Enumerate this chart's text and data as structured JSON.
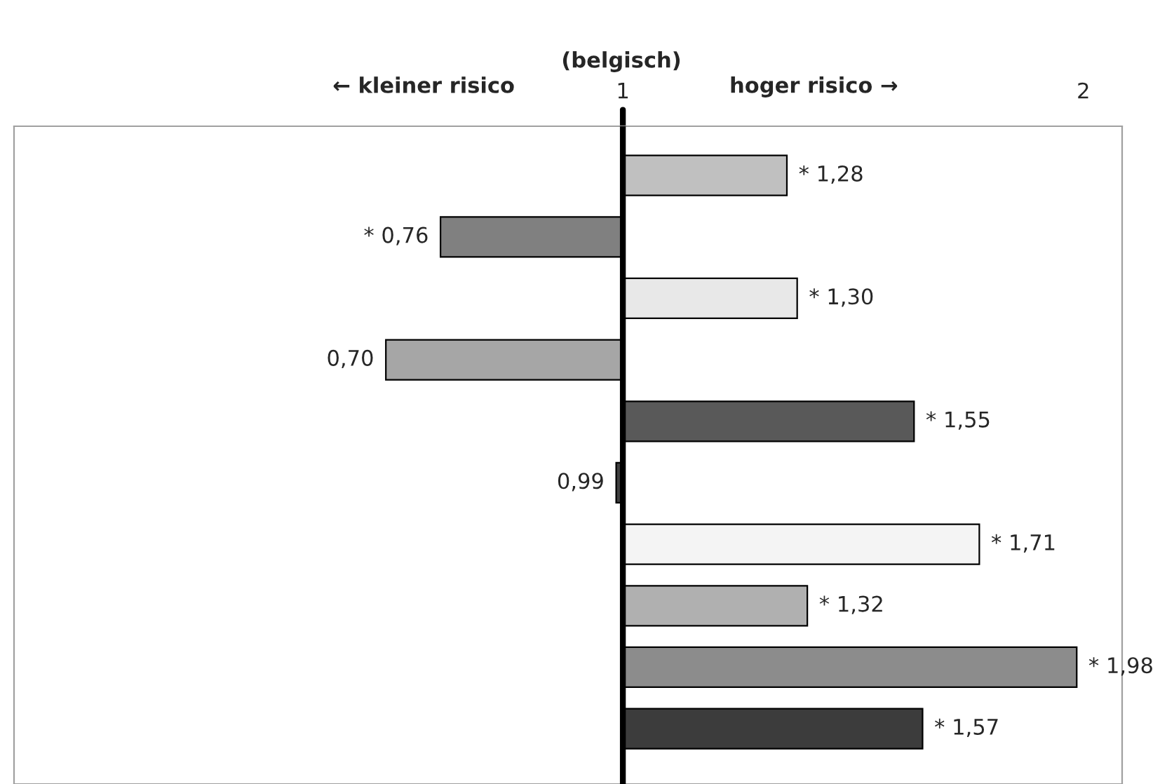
{
  "chart_data": {
    "type": "bar",
    "orientation": "horizontal",
    "log": "x",
    "categories": [
      null,
      null,
      null,
      null,
      null,
      null,
      null,
      null,
      null,
      null
    ],
    "base": [
      1,
      1,
      1,
      1,
      1,
      1,
      1,
      1,
      1,
      1
    ],
    "values": [
      0.28,
      -0.24,
      0.3,
      -0.3,
      0.55,
      -0.01,
      0.71,
      0.32,
      0.98,
      0.57
    ],
    "value_labels": [
      "* 1,28",
      "* 0,76",
      "* 1,30",
      "0,70",
      "* 1,55",
      "0,99",
      "* 1,71",
      "* 1,32",
      "* 1,98",
      "* 1,57"
    ],
    "colors": [
      "#c0c0c0",
      "#808080",
      "#e8e8e8",
      "#a6a6a6",
      "#595959",
      "#404040",
      "#f4f4f4",
      "#b0b0b0",
      "#8c8c8c",
      "#3c3c3c"
    ],
    "xlim": [
      0.4,
      2.12
    ],
    "xticks": [
      1,
      2
    ],
    "ref_lines": [
      {
        "axis": "x",
        "value": 1,
        "label": null,
        "color": "#000000"
      }
    ],
    "annotations": [
      "(belgisch)",
      "← kleiner risico",
      "hoger risico →"
    ],
    "grid": false,
    "legend": false
  }
}
